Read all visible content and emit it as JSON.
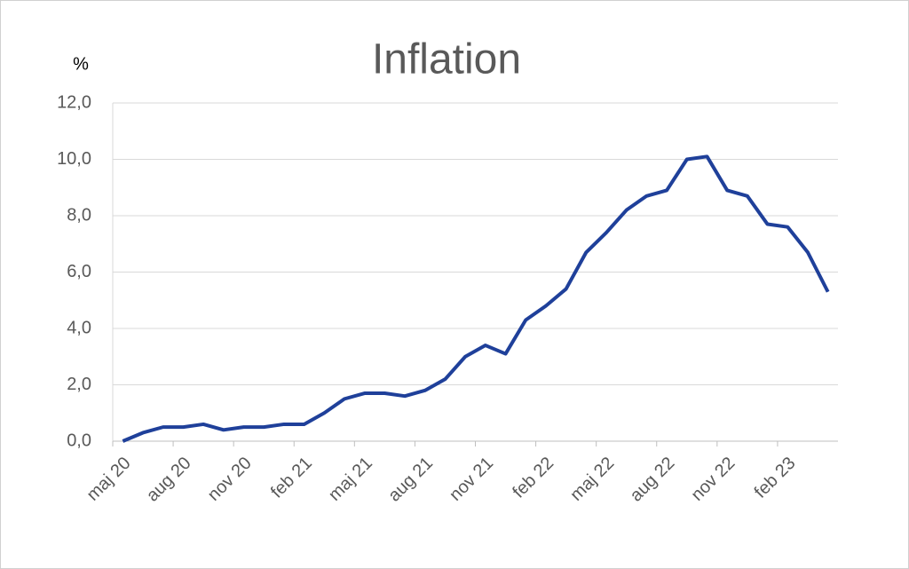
{
  "chart_data": {
    "type": "line",
    "title": "Inflation",
    "ylabel": "%",
    "categories": [
      "maj 20",
      null,
      null,
      "aug 20",
      null,
      null,
      "nov 20",
      null,
      null,
      "feb 21",
      null,
      null,
      "maj 21",
      null,
      null,
      "aug 21",
      null,
      null,
      "nov 21",
      null,
      null,
      "feb 22",
      null,
      null,
      "maj 22",
      null,
      null,
      "aug 22",
      null,
      null,
      "nov 22",
      null,
      null,
      "feb 23",
      null,
      null
    ],
    "series": [
      {
        "name": "Inflation",
        "color": "#1f409a",
        "values": [
          0.0,
          0.3,
          0.5,
          0.5,
          0.6,
          0.4,
          0.5,
          0.5,
          0.6,
          0.6,
          1.0,
          1.5,
          1.7,
          1.7,
          1.6,
          1.8,
          2.2,
          3.0,
          3.4,
          3.1,
          4.3,
          4.8,
          5.4,
          6.7,
          7.4,
          8.2,
          8.7,
          8.9,
          10.0,
          10.1,
          8.9,
          8.7,
          7.7,
          7.6,
          6.7,
          5.3
        ]
      }
    ],
    "ylim": [
      0,
      12
    ],
    "yticks": [
      {
        "value": 0,
        "label": "0,0"
      },
      {
        "value": 2,
        "label": "2,0"
      },
      {
        "value": 4,
        "label": "4,0"
      },
      {
        "value": 6,
        "label": "6,0"
      },
      {
        "value": 8,
        "label": "8,0"
      },
      {
        "value": 10,
        "label": "10,0"
      },
      {
        "value": 12,
        "label": "12,0"
      }
    ],
    "grid": true
  }
}
